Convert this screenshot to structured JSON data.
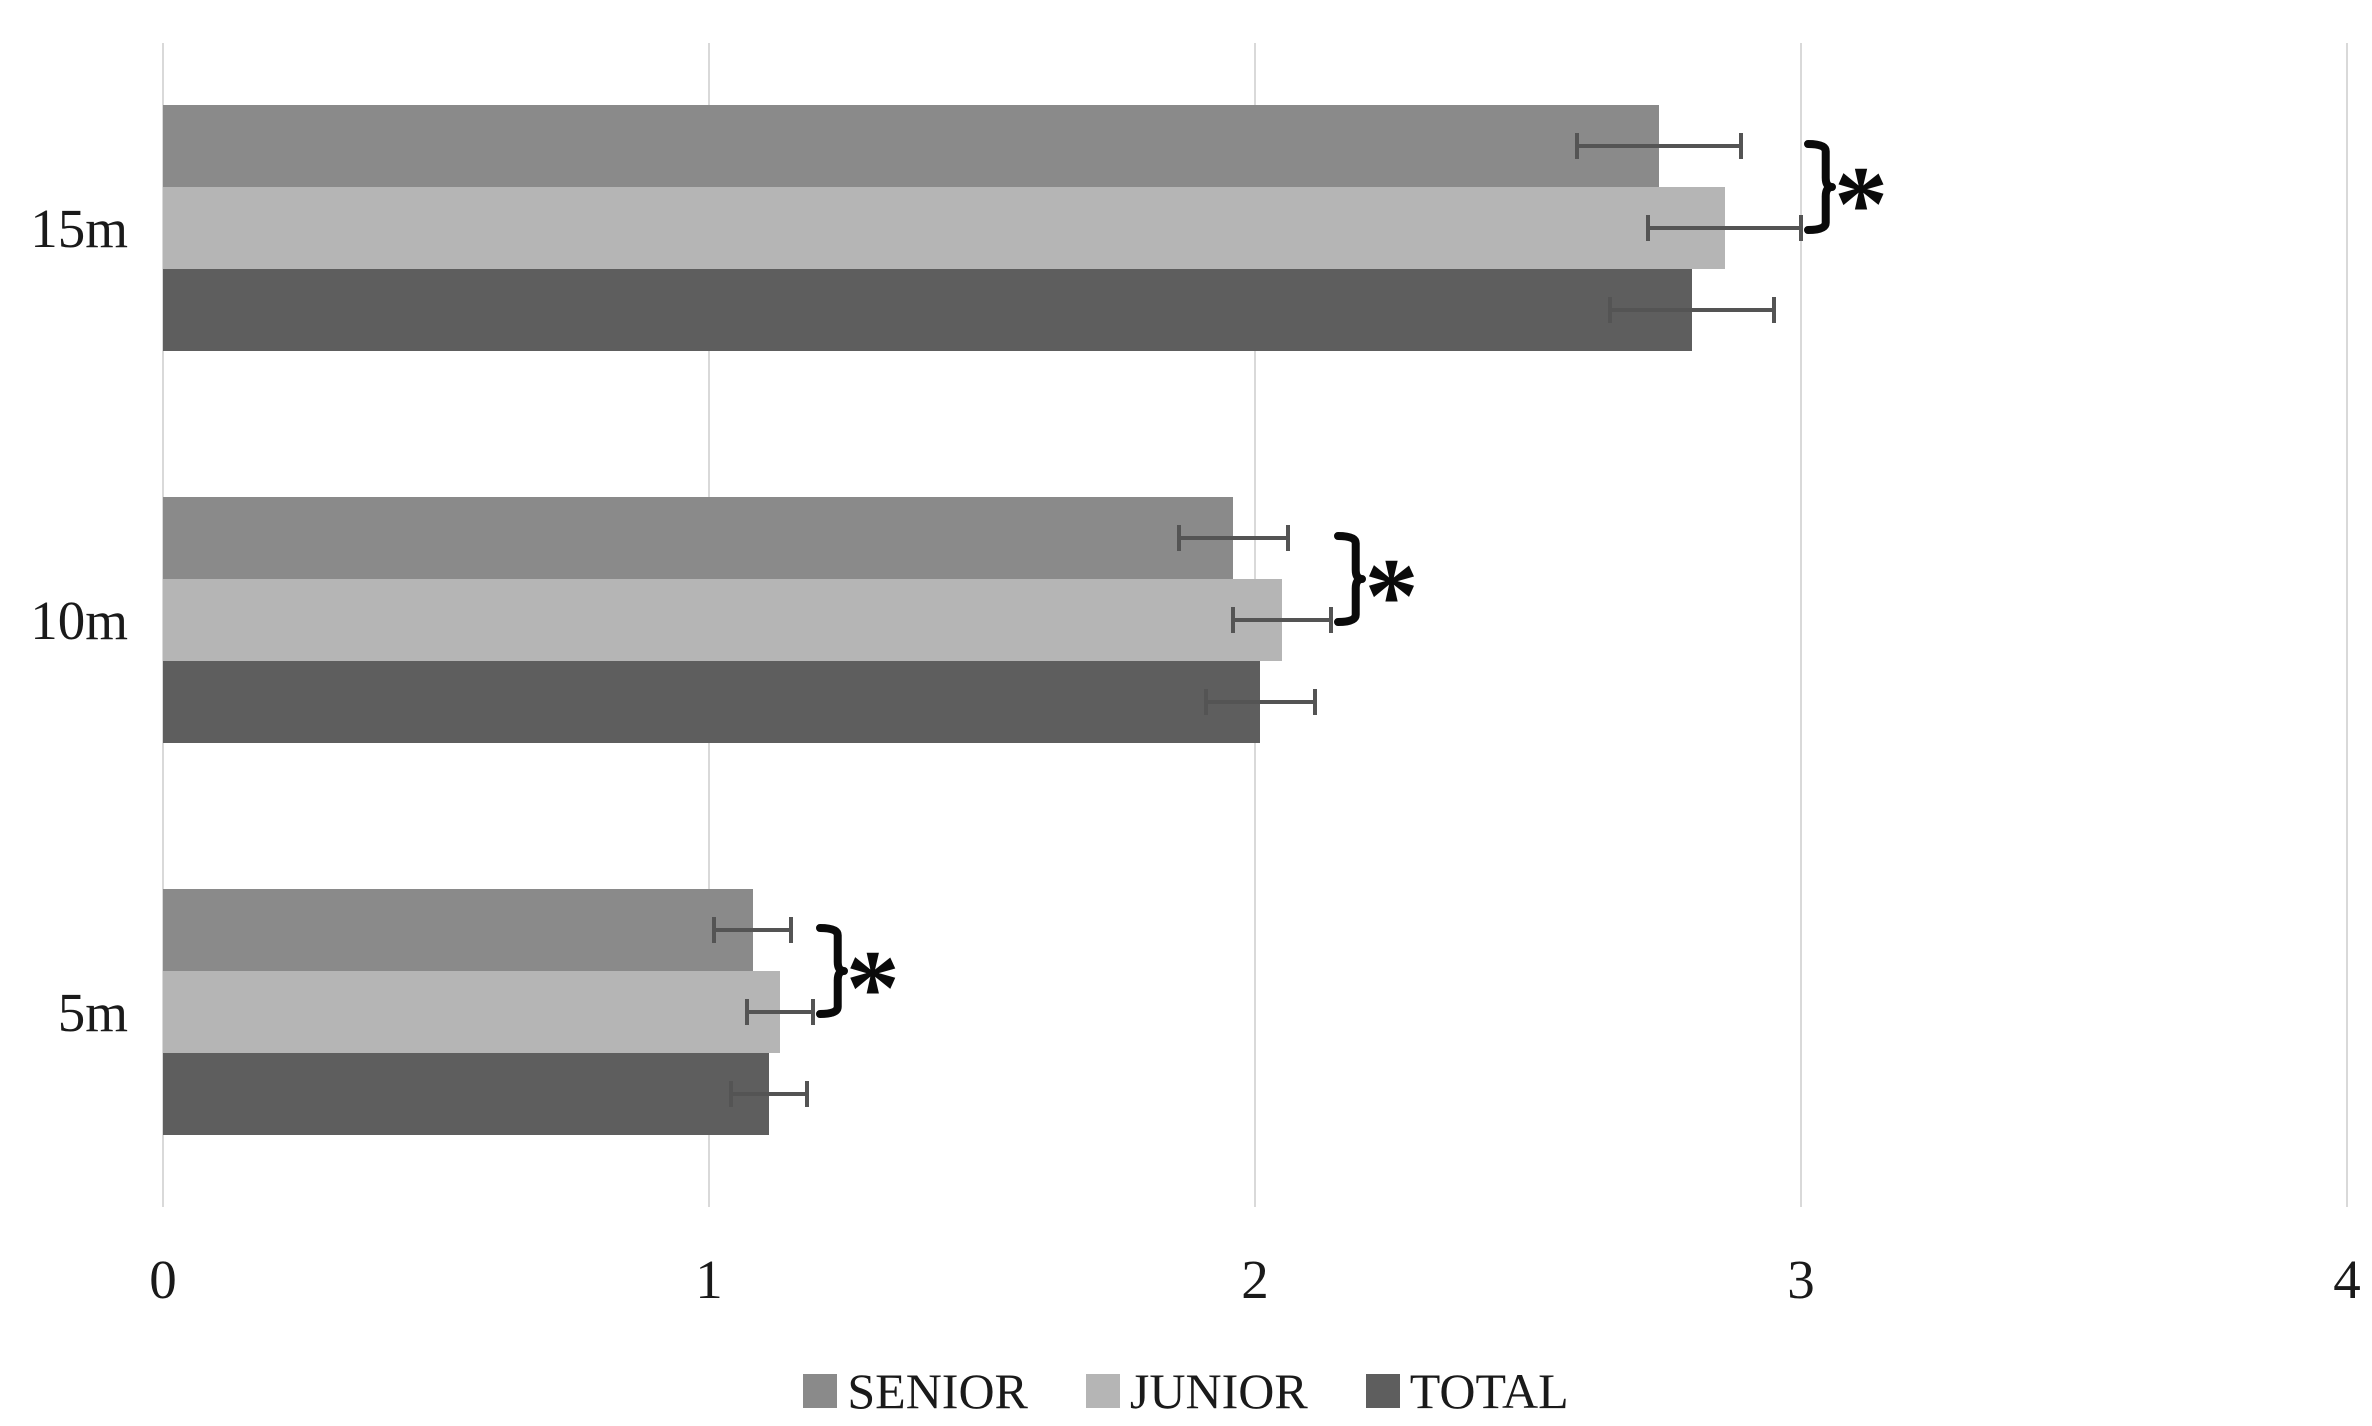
{
  "chart_data": {
    "type": "bar",
    "orientation": "horizontal",
    "title": "",
    "xlabel": "",
    "ylabel": "",
    "categories": [
      "15m",
      "10m",
      "5m"
    ],
    "series": [
      {
        "name": "SENIOR",
        "color": "#8a8a8a",
        "values": [
          2.74,
          1.96,
          1.08
        ],
        "errors": [
          0.15,
          0.1,
          0.07
        ]
      },
      {
        "name": "JUNIOR",
        "color": "#b5b5b5",
        "values": [
          2.86,
          2.05,
          1.13
        ],
        "errors": [
          0.14,
          0.09,
          0.06
        ]
      },
      {
        "name": "TOTAL",
        "color": "#5e5e5e",
        "values": [
          2.8,
          2.01,
          1.11
        ],
        "errors": [
          0.15,
          0.1,
          0.07
        ]
      }
    ],
    "x_ticks": [
      "0",
      "1",
      "2",
      "3",
      "4"
    ],
    "xlim": [
      0,
      4
    ],
    "grid": "vertical-gridlines",
    "legend_position": "bottom-center",
    "significance": [
      {
        "category": "15m",
        "between": [
          "SENIOR",
          "JUNIOR"
        ],
        "label": "*"
      },
      {
        "category": "10m",
        "between": [
          "SENIOR",
          "JUNIOR"
        ],
        "label": "*"
      },
      {
        "category": "5m",
        "between": [
          "SENIOR",
          "JUNIOR"
        ],
        "label": "*"
      }
    ],
    "colors": {
      "background": "#ffffff",
      "gridline": "#d9d9d9",
      "error_bar": "#545454",
      "annotation": "#0a0a0a",
      "text": "#1a1a1a"
    }
  }
}
